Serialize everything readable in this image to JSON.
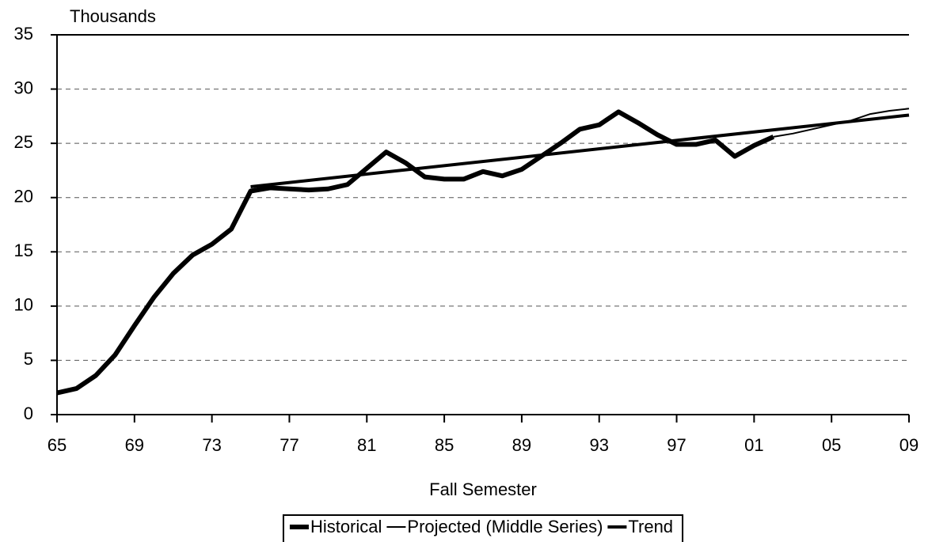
{
  "chart_data": {
    "type": "line",
    "ylabel": "Thousands",
    "xlabel": "Fall Semester",
    "xlim": [
      1965,
      2009
    ],
    "xticks": [
      {
        "value": 1965,
        "label": "65"
      },
      {
        "value": 1969,
        "label": "69"
      },
      {
        "value": 1973,
        "label": "73"
      },
      {
        "value": 1977,
        "label": "77"
      },
      {
        "value": 1981,
        "label": "81"
      },
      {
        "value": 1985,
        "label": "85"
      },
      {
        "value": 1989,
        "label": "89"
      },
      {
        "value": 1993,
        "label": "93"
      },
      {
        "value": 1997,
        "label": "97"
      },
      {
        "value": 2001,
        "label": "01"
      },
      {
        "value": 2005,
        "label": "05"
      },
      {
        "value": 2009,
        "label": "09"
      }
    ],
    "ylim": [
      0,
      35
    ],
    "yticks": [
      0,
      5,
      10,
      15,
      20,
      25,
      30,
      35
    ],
    "grid": true,
    "legend": "bottom",
    "series": [
      {
        "name": "Historical",
        "color": "#000000",
        "linewidth": 6,
        "x": [
          1965,
          1966,
          1967,
          1968,
          1969,
          1970,
          1971,
          1972,
          1973,
          1974,
          1975,
          1976,
          1977,
          1978,
          1979,
          1980,
          1981,
          1982,
          1983,
          1984,
          1985,
          1986,
          1987,
          1988,
          1989,
          1990,
          1991,
          1992,
          1993,
          1994,
          1995,
          1996,
          1997,
          1998,
          1999,
          2000,
          2001,
          2002
        ],
        "values": [
          2.0,
          2.4,
          3.6,
          5.5,
          8.2,
          10.8,
          13.0,
          14.7,
          15.7,
          17.1,
          20.6,
          20.9,
          20.8,
          20.7,
          20.8,
          21.2,
          22.7,
          24.2,
          23.2,
          21.9,
          21.7,
          21.7,
          22.4,
          22.0,
          22.6,
          23.8,
          25.0,
          26.3,
          26.7,
          27.9,
          26.9,
          25.8,
          24.9,
          24.9,
          25.3,
          23.8,
          24.8,
          25.6
        ]
      },
      {
        "name": "Projected (Middle Series)",
        "color": "#000000",
        "linewidth": 2,
        "x": [
          2002,
          2003,
          2004,
          2005,
          2006,
          2007,
          2008,
          2009
        ],
        "values": [
          25.6,
          25.9,
          26.3,
          26.7,
          27.1,
          27.7,
          28.0,
          28.2
        ]
      },
      {
        "name": "Trend",
        "color": "#000000",
        "linewidth": 4,
        "x": [
          1975,
          2009
        ],
        "values": [
          21.0,
          27.6
        ]
      }
    ]
  }
}
